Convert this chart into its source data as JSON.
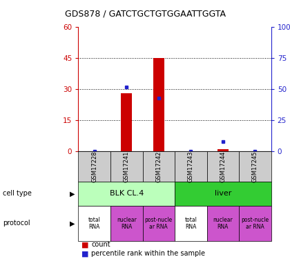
{
  "title": "GDS878 / GATCTGCTGTGGAATTGGTA",
  "samples": [
    "GSM17228",
    "GSM17241",
    "GSM17242",
    "GSM17243",
    "GSM17244",
    "GSM17245"
  ],
  "counts": [
    0,
    28,
    45,
    0,
    1,
    0
  ],
  "percentiles": [
    0,
    52,
    43,
    0,
    8,
    0
  ],
  "ylim_left": [
    0,
    60
  ],
  "ylim_right": [
    0,
    100
  ],
  "yticks_left": [
    0,
    15,
    30,
    45,
    60
  ],
  "yticks_right": [
    0,
    25,
    50,
    75,
    100
  ],
  "bar_color": "#cc0000",
  "dot_color": "#2222cc",
  "cell_type_data": [
    {
      "label": "BLK CL.4",
      "start": 0,
      "end": 3,
      "color": "#bbffbb"
    },
    {
      "label": "liver",
      "start": 3,
      "end": 6,
      "color": "#33cc33"
    }
  ],
  "protocol_data": [
    {
      "label": "total\nRNA",
      "color": "#ffffff"
    },
    {
      "label": "nuclear\nRNA",
      "color": "#cc55cc"
    },
    {
      "label": "post-nucle\nar RNA",
      "color": "#cc55cc"
    },
    {
      "label": "total\nRNA",
      "color": "#ffffff"
    },
    {
      "label": "nuclear\nRNA",
      "color": "#cc55cc"
    },
    {
      "label": "post-nucle\nar RNA",
      "color": "#cc55cc"
    }
  ],
  "sample_box_color": "#cccccc",
  "left_color": "#cc0000",
  "right_color": "#2222cc",
  "fig_width": 4.2,
  "fig_height": 3.75,
  "dpi": 100
}
